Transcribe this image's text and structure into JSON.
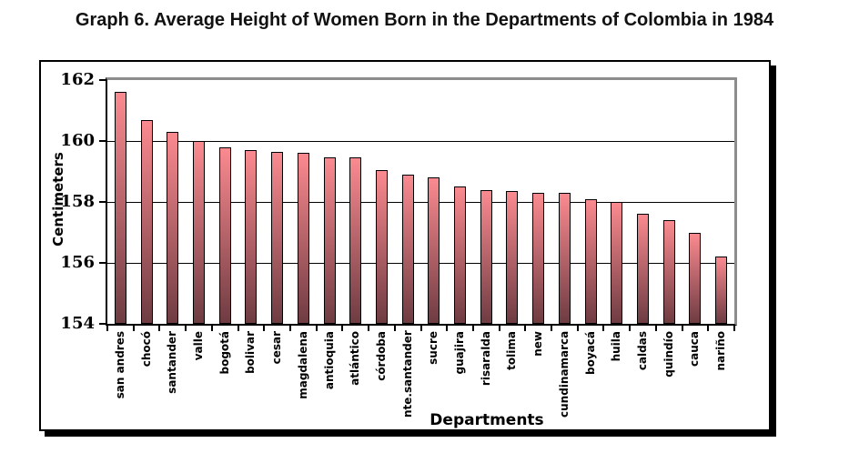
{
  "page": {
    "title": "Graph 6. Average Height of Women Born in the Departments of Colombia in 1984"
  },
  "chart_data": {
    "type": "bar",
    "title": "Graph 6. Average Height of Women Born in the Departments of Colombia in 1984",
    "xlabel": "Departments",
    "ylabel": "Centimeters",
    "categories": [
      "san andres",
      "chocó",
      "santander",
      "valle",
      "bogotá",
      "bolivar",
      "cesar",
      "magdalena",
      "antioquia",
      "atlántico",
      "córdoba",
      "nte.santander",
      "sucre",
      "guajira",
      "risaralda",
      "tolima",
      "new",
      "cundinamarca",
      "boyacá",
      "huila",
      "caldas",
      "quindío",
      "cauca",
      "nariño"
    ],
    "values": [
      161.6,
      160.7,
      160.3,
      160.0,
      159.8,
      159.7,
      159.65,
      159.6,
      159.45,
      159.45,
      159.05,
      158.9,
      158.8,
      158.5,
      158.4,
      158.35,
      158.3,
      158.3,
      158.1,
      158.0,
      157.6,
      157.4,
      157.0,
      156.2
    ],
    "ylim": [
      154,
      162
    ],
    "yticks": [
      154,
      156,
      158,
      160,
      162
    ],
    "grid": true,
    "legend": false,
    "colors": {
      "bar_gradient_top": "#FA8A90",
      "bar_gradient_bottom": "#6E3C42",
      "bar_outline": "#000000",
      "plot_border": "#8C8C8C",
      "axis_line": "#000000",
      "text": "#000000",
      "background": "#FFFFFF"
    }
  }
}
